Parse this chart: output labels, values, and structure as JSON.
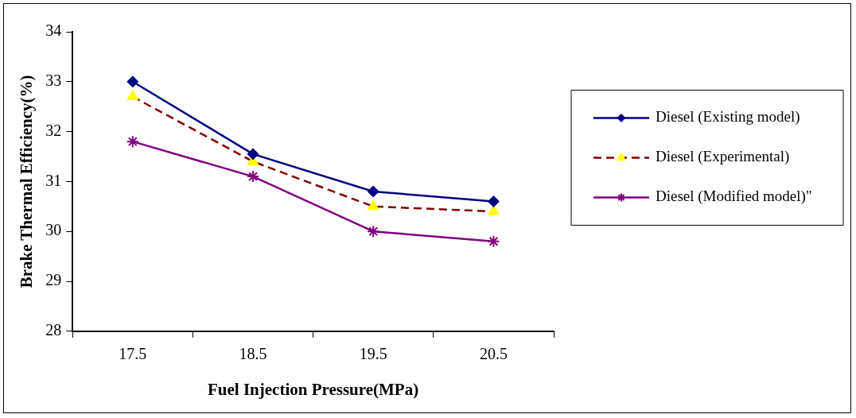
{
  "chart_data": {
    "type": "line",
    "xlabel": "Fuel Injection Pressure(MPa)",
    "ylabel": "Brake Thermal Efficiency(%)",
    "categories": [
      "17.5",
      "18.5",
      "19.5",
      "20.5"
    ],
    "series": [
      {
        "name": "Diesel (Existing model)",
        "color": "#000080",
        "values": [
          33.0,
          31.55,
          30.8,
          30.6
        ],
        "marker": "diamond",
        "line_style": "solid"
      },
      {
        "name": "Diesel (Experimental)",
        "color": "#800000",
        "colors": [
          "#ffff00",
          "#ffff00",
          "#ffff00",
          "#ffff00"
        ],
        "values": [
          32.7,
          31.4,
          30.5,
          30.4
        ],
        "marker": "triangle",
        "line_style": "dashed"
      },
      {
        "name": "Diesel (Modified model)\"",
        "color": "#800080",
        "values": [
          31.8,
          31.1,
          30.0,
          29.8
        ],
        "marker": "cross",
        "line_style": "solid"
      }
    ],
    "ylim": [
      28,
      34
    ],
    "yticks": [
      28,
      29,
      30,
      31,
      32,
      33,
      34
    ],
    "grid": false,
    "legend": "right"
  }
}
